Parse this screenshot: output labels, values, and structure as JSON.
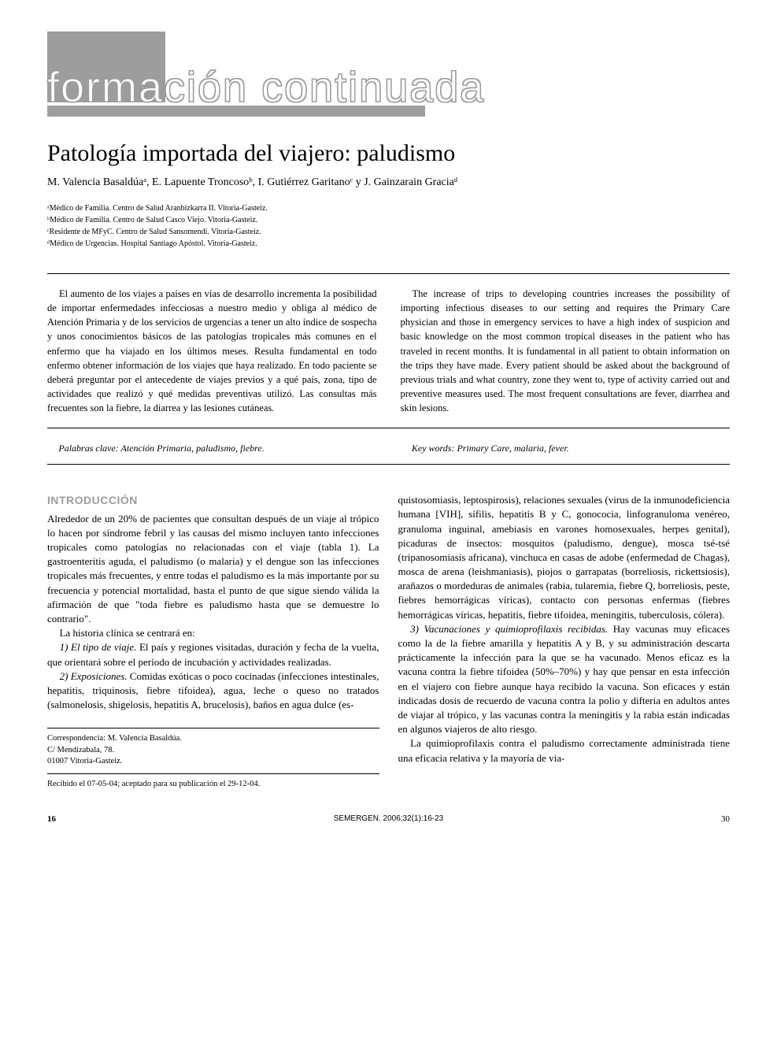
{
  "banner": {
    "text": "formación continuada"
  },
  "title": "Patología importada del viajero: paludismo",
  "authors": "M. Valencia Basaldúaᵃ, E. Lapuente Troncosoᵇ, I. Gutiérrez Garitanoᶜ y J. Gainzarain Graciaᵈ",
  "affiliations": {
    "a": "ᵃMédico de Familia. Centro de Salud Aranbizkarra II. Vitoria-Gasteiz.",
    "b": "ᵇMédico de Familia. Centro de Salud Casco Viejo. Vitoria-Gasteiz.",
    "c": "ᶜResidente de MFyC. Centro de Salud Sansomendi. Vitoria-Gasteiz.",
    "d": "ᵈMédico de Urgencias. Hospital Santiago Apóstol. Vitoria-Gasteiz."
  },
  "abstract": {
    "spanish": "El aumento de los viajes a países en vías de desarrollo incrementa la posibilidad de importar enfermedades infecciosas a nuestro medio y obliga al médico de Atención Primaria y de los servicios de urgencias a tener un alto índice de sospecha y unos conocimientos básicos de las patologías tropicales más comunes en el enfermo que ha viajado en los últimos meses. Resulta fundamental en todo enfermo obtener información de los viajes que haya realizado. En todo paciente se deberá preguntar por el antecedente de viajes previos y a qué país, zona, tipo de actividades que realizó y qué medidas preventivas utilizó. Las consultas más frecuentes son la fiebre, la diarrea y las lesiones cutáneas.",
    "english": "The increase of trips to developing countries increases the possibility of importing infectious diseases to our setting and requires the Primary Care physician and those in emergency services to have a high index of suspicion and basic knowledge on the most common tropical diseases in the patient who has traveled in recent months. It is fundamental in all patient to obtain information on the trips they have made. Every patient should be asked about the background of previous trials and what country, zone they went to, type of activity carried out and preventive measures used. The most frequent consultations are fever, diarrhea and skin lesions."
  },
  "keywords": {
    "spanish_label": "Palabras clave:",
    "spanish_text": " Atención Primaria, paludismo, fiebre.",
    "english_label": "Key words:",
    "english_text": " Primary Care, malaria, fever."
  },
  "body": {
    "intro_heading": "INTRODUCCIÓN",
    "col1_p1": "Alrededor de un 20% de pacientes que consultan después de un viaje al trópico lo hacen por síndrome febril y las causas del mismo incluyen tanto infecciones tropicales como patologías no relacionadas con el viaje (tabla 1). La gastroenteritis aguda, el paludismo (o malaria) y el dengue son las infecciones tropicales más frecuentes, y entre todas el paludismo es la más importante por su frecuencia y potencial mortalidad, hasta el punto de que sigue siendo válida la afirmación de que \"toda fiebre es paludismo hasta que se demuestre lo contrario\".",
    "col1_p2": "La historia clínica se centrará en:",
    "col1_p3_label": "1) El tipo de viaje.",
    "col1_p3_text": " El país y regiones visitadas, duración y fecha de la vuelta, que orientará sobre el período de incubación y actividades realizadas.",
    "col1_p4_label": "2) Exposiciones.",
    "col1_p4_text": " Comidas exóticas o poco cocinadas (infecciones intestinales, hepatitis, triquinosis, fiebre tifoidea), agua, leche o queso no tratados (salmonelosis, shigelosis, hepatitis A, brucelosis), baños en agua dulce (es-",
    "col2_p1": "quistosomiasis, leptospirosis), relaciones sexuales (virus de la inmunodeficiencia humana [VIH], sífilis, hepatitis B y C, gonococia, linfogranuloma venéreo, granuloma inguinal, amebiasis en varones homosexuales, herpes genital), picaduras de insectos: mosquitos (paludismo, dengue), mosca tsé-tsé (tripanosomiasis africana), vinchuca en casas de adobe (enfermedad de Chagas), mosca de arena (leishmaniasis), piojos o garrapatas (borreliosis, rickettsiosis), arañazos o mordeduras de animales (rabia, tularemia, fiebre Q, borreliosis, peste, fiebres hemorrágicas víricas), contacto con personas enfermas (fiebres hemorrágicas víricas, hepatitis, fiebre tifoidea, meningitis, tuberculosis, cólera).",
    "col2_p2_label": "3) Vacunaciones y quimioprofilaxis recibidas.",
    "col2_p2_text": " Hay vacunas muy eficaces como la de la fiebre amarilla y hepatitis A y B, y su administración descarta prácticamente la infección para la que se ha vacunado. Menos eficaz es la vacuna contra la fiebre tifoidea (50%–70%) y hay que pensar en esta infección en el viajero con fiebre aunque haya recibido la vacuna. Son eficaces y están indicadas dosis de recuerdo de vacuna contra la polio y difteria en adultos antes de viajar al trópico, y las vacunas contra la meningitis y la rabia están indicadas en algunos viajeros de alto riesgo.",
    "col2_p3": "La quimioprofilaxis contra el paludismo correctamente administrada tiene una eficacia relativa y la mayoría de via-"
  },
  "correspondence": {
    "label": "Correspondencia:",
    "name": " M. Valencia Basaldúa.",
    "address1": "C/ Mendizabala, 78.",
    "address2": "01007 Vitoria-Gasteiz."
  },
  "received": "Recibido el 07-05-04; aceptado para su publicación el 29-12-04.",
  "footer": {
    "page_left": "16",
    "citation": "SEMERGEN. 2006;32(1):16-23",
    "page_right": "30"
  }
}
